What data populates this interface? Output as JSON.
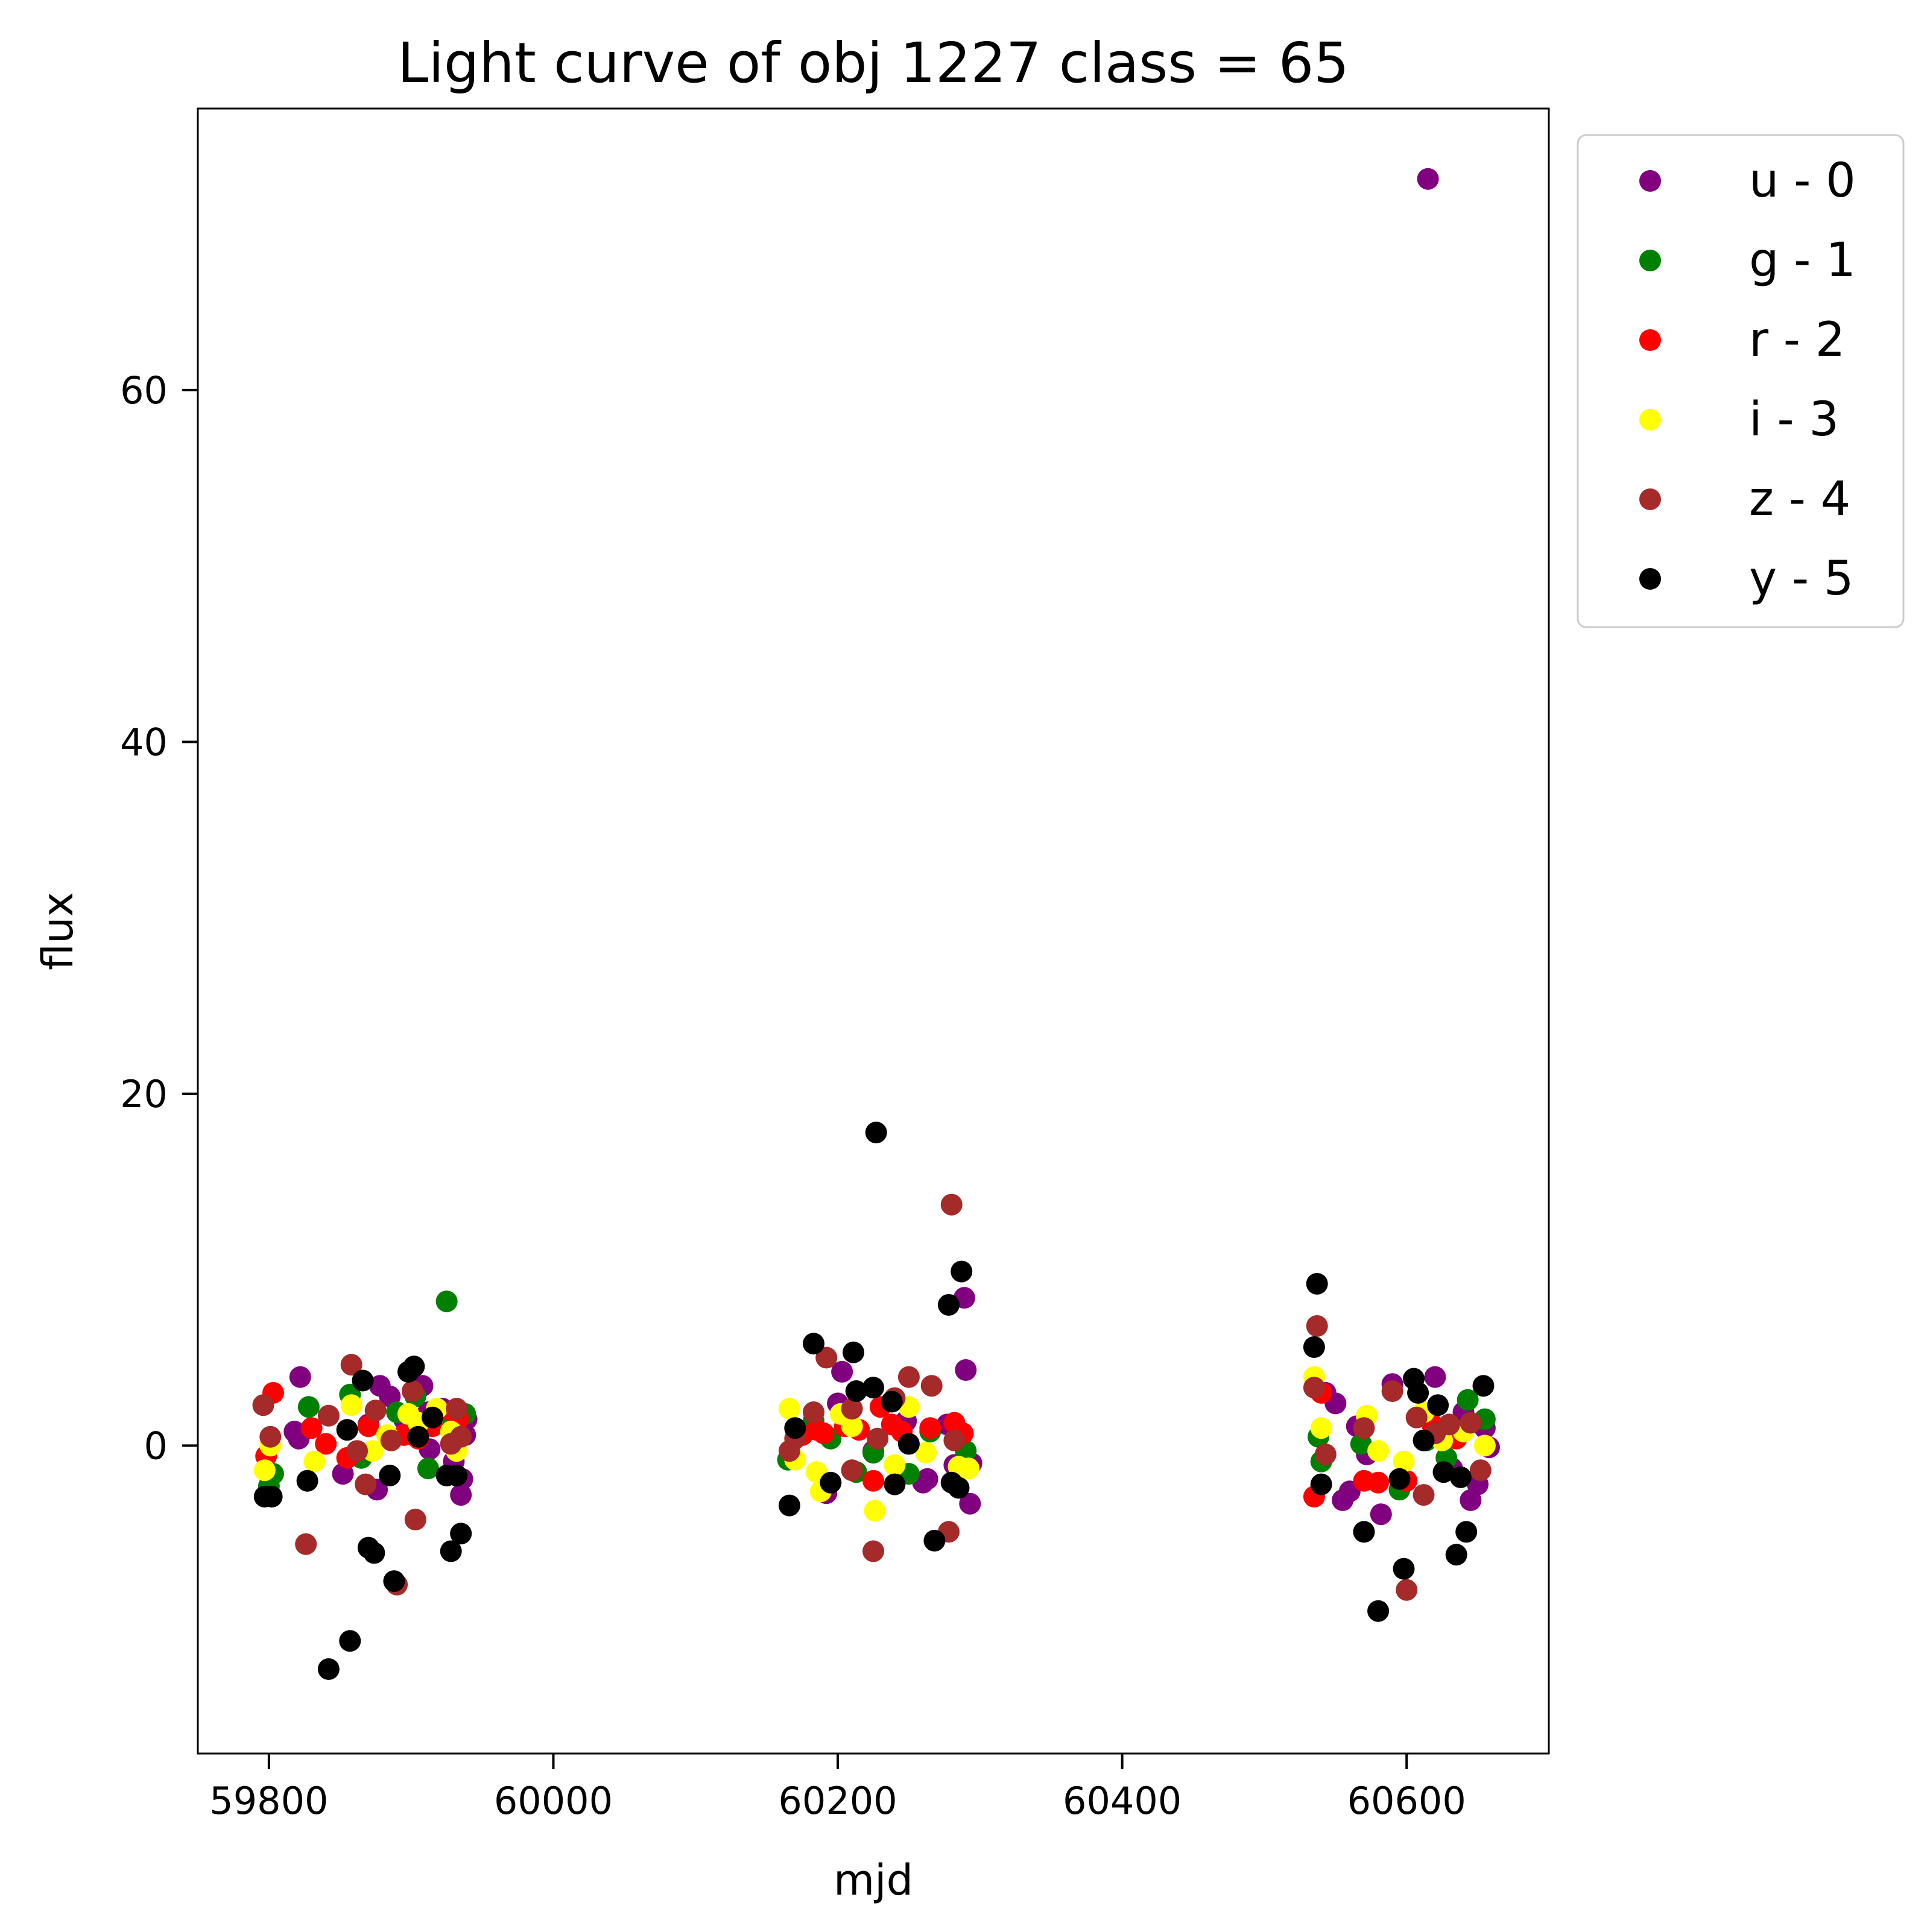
{
  "chart_data": {
    "type": "scatter",
    "title": "Light curve of obj 1227 class = 65",
    "xlabel": "mjd",
    "ylabel": "flux",
    "xlim": [
      59750,
      60700
    ],
    "ylim": [
      -17.5,
      76
    ],
    "xticks": [
      59800,
      60000,
      60200,
      60400,
      60600
    ],
    "yticks": [
      0,
      20,
      40,
      60
    ],
    "grid": false,
    "legend": "outside top-right",
    "series": [
      {
        "name": "u - 0",
        "color": "#800080",
        "points": [
          [
            59822,
            3.9
          ],
          [
            59818,
            0.8
          ],
          [
            59821,
            0.4
          ],
          [
            59852,
            -1.6
          ],
          [
            59870,
            1.2
          ],
          [
            59876,
            -2.5
          ],
          [
            59878,
            3.4
          ],
          [
            59885,
            2.8
          ],
          [
            59908,
            3.4
          ],
          [
            59913,
            -0.2
          ],
          [
            59922,
            2.1
          ],
          [
            59935,
            -2.8
          ],
          [
            59936,
            -1.9
          ],
          [
            59939,
            1.5
          ],
          [
            59938,
            0.6
          ],
          [
            59930,
            -0.9
          ],
          [
            59912,
            1.9
          ],
          [
            59895,
            1.5
          ],
          [
            60192,
            -2.7
          ],
          [
            60200,
            2.4
          ],
          [
            60203,
            4.2
          ],
          [
            60225,
            -0.3
          ],
          [
            60248,
            1.4
          ],
          [
            60260,
            -2.1
          ],
          [
            60263,
            -1.9
          ],
          [
            60277,
            1.2
          ],
          [
            60282,
            -1.1
          ],
          [
            60289,
            8.4
          ],
          [
            60293,
            -3.3
          ],
          [
            60290,
            4.3
          ],
          [
            60294,
            -1.0
          ],
          [
            60543,
            3.0
          ],
          [
            60550,
            2.4
          ],
          [
            60555,
            -3.1
          ],
          [
            60560,
            -2.6
          ],
          [
            60565,
            1.1
          ],
          [
            60572,
            -0.5
          ],
          [
            60582,
            -3.9
          ],
          [
            60590,
            3.5
          ],
          [
            60615,
            72.0
          ],
          [
            60620,
            3.9
          ],
          [
            60632,
            -1.3
          ],
          [
            60640,
            1.9
          ],
          [
            60645,
            -3.1
          ],
          [
            60650,
            -2.2
          ],
          [
            60655,
            1.0
          ],
          [
            60658,
            -0.1
          ]
        ]
      },
      {
        "name": "g - 1",
        "color": "#008000",
        "points": [
          [
            59800,
            -2.3
          ],
          [
            59803,
            -1.6
          ],
          [
            59828,
            2.2
          ],
          [
            59857,
            2.9
          ],
          [
            59865,
            -0.7
          ],
          [
            59890,
            1.9
          ],
          [
            59903,
            2.8
          ],
          [
            59912,
            -1.3
          ],
          [
            59925,
            8.2
          ],
          [
            59930,
            1.3
          ],
          [
            59938,
            1.8
          ],
          [
            60165,
            -0.8
          ],
          [
            60183,
            1.4
          ],
          [
            60195,
            0.4
          ],
          [
            60213,
            -1.5
          ],
          [
            60225,
            -0.4
          ],
          [
            60250,
            -1.6
          ],
          [
            60265,
            0.8
          ],
          [
            60290,
            -0.3
          ],
          [
            60540,
            -0.9
          ],
          [
            60538,
            0.5
          ],
          [
            60568,
            0.1
          ],
          [
            60595,
            -2.5
          ],
          [
            60614,
            0.3
          ],
          [
            60628,
            -0.7
          ],
          [
            60643,
            2.6
          ],
          [
            60655,
            1.5
          ]
        ]
      },
      {
        "name": "r - 2",
        "color": "#ff0000",
        "points": [
          [
            59798,
            -0.6
          ],
          [
            59803,
            3.0
          ],
          [
            59830,
            1.0
          ],
          [
            59840,
            0.1
          ],
          [
            59855,
            -0.7
          ],
          [
            59870,
            1.1
          ],
          [
            59895,
            0.6
          ],
          [
            59905,
            0.4
          ],
          [
            59915,
            1.1
          ],
          [
            59920,
            2.0
          ],
          [
            59933,
            1.5
          ],
          [
            60175,
            0.6
          ],
          [
            60185,
            0.9
          ],
          [
            60190,
            0.7
          ],
          [
            60205,
            1.1
          ],
          [
            60215,
            0.9
          ],
          [
            60225,
            -2.0
          ],
          [
            60230,
            2.2
          ],
          [
            60238,
            1.2
          ],
          [
            60245,
            0.8
          ],
          [
            60265,
            1.0
          ],
          [
            60282,
            1.3
          ],
          [
            60288,
            0.7
          ],
          [
            60535,
            -2.9
          ],
          [
            60540,
            3.0
          ],
          [
            60570,
            -2.0
          ],
          [
            60580,
            -2.1
          ],
          [
            60600,
            -2.0
          ],
          [
            60618,
            1.2
          ],
          [
            60635,
            0.4
          ]
        ]
      },
      {
        "name": "i - 3",
        "color": "#ffff00",
        "points": [
          [
            59797,
            -1.4
          ],
          [
            59801,
            0.0
          ],
          [
            59832,
            -0.9
          ],
          [
            59858,
            2.3
          ],
          [
            59873,
            -0.3
          ],
          [
            59883,
            0.6
          ],
          [
            59898,
            1.8
          ],
          [
            59905,
            1.3
          ],
          [
            59918,
            2.1
          ],
          [
            59928,
            0.8
          ],
          [
            59932,
            -0.3
          ],
          [
            60166,
            2.1
          ],
          [
            60170,
            -0.8
          ],
          [
            60185,
            -1.5
          ],
          [
            60188,
            -2.6
          ],
          [
            60202,
            1.8
          ],
          [
            60210,
            1.1
          ],
          [
            60226,
            -3.7
          ],
          [
            60240,
            -1.1
          ],
          [
            60250,
            2.2
          ],
          [
            60262,
            -0.4
          ],
          [
            60285,
            -1.2
          ],
          [
            60292,
            -1.3
          ],
          [
            60535,
            3.9
          ],
          [
            60540,
            1.0
          ],
          [
            60572,
            1.7
          ],
          [
            60580,
            -0.3
          ],
          [
            60598,
            -0.9
          ],
          [
            60612,
            1.9
          ],
          [
            60625,
            0.3
          ],
          [
            60640,
            0.8
          ],
          [
            60655,
            0.0
          ]
        ]
      },
      {
        "name": "z - 4",
        "color": "#a52a2a",
        "points": [
          [
            59796,
            2.3
          ],
          [
            59801,
            0.5
          ],
          [
            59826,
            -5.6
          ],
          [
            59842,
            1.7
          ],
          [
            59858,
            4.6
          ],
          [
            59862,
            -0.3
          ],
          [
            59868,
            -2.2
          ],
          [
            59875,
            2.0
          ],
          [
            59886,
            0.3
          ],
          [
            59890,
            -7.9
          ],
          [
            59901,
            3.1
          ],
          [
            59903,
            -4.2
          ],
          [
            59928,
            0.1
          ],
          [
            59932,
            2.1
          ],
          [
            59935,
            0.5
          ],
          [
            60166,
            -0.3
          ],
          [
            60170,
            0.4
          ],
          [
            60183,
            1.9
          ],
          [
            60192,
            5.0
          ],
          [
            60210,
            2.1
          ],
          [
            60210,
            -1.4
          ],
          [
            60225,
            -6.0
          ],
          [
            60228,
            0.4
          ],
          [
            60240,
            2.7
          ],
          [
            60250,
            3.9
          ],
          [
            60266,
            3.4
          ],
          [
            60278,
            -4.9
          ],
          [
            60280,
            13.7
          ],
          [
            60282,
            0.3
          ],
          [
            60535,
            3.3
          ],
          [
            60537,
            6.8
          ],
          [
            60543,
            -0.5
          ],
          [
            60570,
            1.0
          ],
          [
            60590,
            3.1
          ],
          [
            60600,
            -8.2
          ],
          [
            60607,
            1.6
          ],
          [
            60612,
            -2.8
          ],
          [
            60620,
            0.7
          ],
          [
            60630,
            1.2
          ],
          [
            60645,
            1.3
          ],
          [
            60652,
            -1.4
          ]
        ]
      },
      {
        "name": "y - 5",
        "color": "#000000",
        "points": [
          [
            59797,
            -2.9
          ],
          [
            59802,
            -2.9
          ],
          [
            59827,
            -2.0
          ],
          [
            59842,
            -12.7
          ],
          [
            59855,
            0.9
          ],
          [
            59857,
            -11.1
          ],
          [
            59866,
            3.7
          ],
          [
            59870,
            -5.8
          ],
          [
            59874,
            -6.1
          ],
          [
            59885,
            -1.7
          ],
          [
            59888,
            -7.7
          ],
          [
            59898,
            4.2
          ],
          [
            59902,
            4.5
          ],
          [
            59905,
            0.5
          ],
          [
            59915,
            1.6
          ],
          [
            59925,
            -1.7
          ],
          [
            59928,
            -6.0
          ],
          [
            59932,
            -1.7
          ],
          [
            59935,
            -5.0
          ],
          [
            60166,
            -3.4
          ],
          [
            60170,
            1.0
          ],
          [
            60183,
            5.8
          ],
          [
            60195,
            -2.1
          ],
          [
            60211,
            5.3
          ],
          [
            60213,
            3.1
          ],
          [
            60225,
            3.3
          ],
          [
            60227,
            17.8
          ],
          [
            60238,
            2.5
          ],
          [
            60240,
            -2.2
          ],
          [
            60250,
            0.1
          ],
          [
            60268,
            -5.4
          ],
          [
            60278,
            8.0
          ],
          [
            60280,
            -2.1
          ],
          [
            60285,
            -2.4
          ],
          [
            60287,
            9.9
          ],
          [
            60535,
            5.6
          ],
          [
            60537,
            9.2
          ],
          [
            60540,
            -2.2
          ],
          [
            60570,
            -4.9
          ],
          [
            60580,
            -9.4
          ],
          [
            60595,
            -1.9
          ],
          [
            60598,
            -7.0
          ],
          [
            60605,
            3.8
          ],
          [
            60608,
            3.0
          ],
          [
            60612,
            0.3
          ],
          [
            60622,
            2.3
          ],
          [
            60626,
            -1.5
          ],
          [
            60635,
            -6.2
          ],
          [
            60638,
            -1.8
          ],
          [
            60642,
            -4.9
          ],
          [
            60654,
            3.4
          ]
        ]
      }
    ]
  }
}
